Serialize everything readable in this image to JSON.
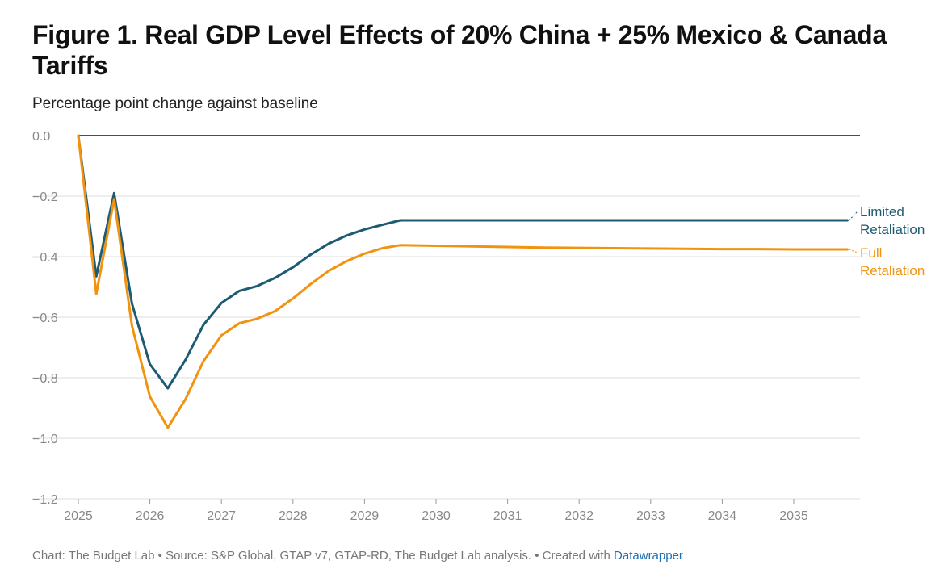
{
  "title": "Figure 1. Real GDP Level Effects of 20% China + 25% Mexico & Canada Tariffs",
  "subtitle": "Percentage point change against baseline",
  "footer": {
    "text": "Chart: The Budget Lab • Source: S&P Global, GTAP v7, GTAP-RD, The Budget Lab analysis. • Created with ",
    "link": "Datawrapper"
  },
  "colors": {
    "limited": "#1d5b73",
    "full": "#f2930f",
    "grid": "#dedede",
    "zero_line": "#111111",
    "tick_label": "#888888"
  },
  "chart_data": {
    "type": "line",
    "title": "Figure 1. Real GDP Level Effects of 20% China + 25% Mexico & Canada Tariffs",
    "subtitle": "Percentage point change against baseline",
    "xlabel": "",
    "ylabel": "",
    "xlim": [
      2025,
      2035.75
    ],
    "ylim": [
      -1.2,
      0.0
    ],
    "x_ticks": [
      2025,
      2026,
      2027,
      2028,
      2029,
      2030,
      2031,
      2032,
      2033,
      2034,
      2035
    ],
    "y_ticks": [
      0.0,
      -0.2,
      -0.4,
      -0.6,
      -0.8,
      -1.0,
      -1.2
    ],
    "y_tick_labels": [
      "0.0",
      "−0.2",
      "−0.4",
      "−0.6",
      "−0.8",
      "−1.0",
      "−1.2"
    ],
    "grid": true,
    "legend": "direct labels at right end of lines",
    "x": [
      2025,
      2025.25,
      2025.5,
      2025.75,
      2026,
      2026.25,
      2026.5,
      2026.75,
      2027,
      2027.25,
      2027.5,
      2027.75,
      2028,
      2028.25,
      2028.5,
      2028.75,
      2029,
      2029.25,
      2029.5,
      2029.75,
      2030,
      2030.5,
      2031,
      2031.5,
      2032,
      2032.5,
      2033,
      2033.5,
      2034,
      2034.5,
      2035,
      2035.5,
      2035.75
    ],
    "series": [
      {
        "name": "Limited Retaliation",
        "label_lines": [
          "Limited",
          "Retaliation"
        ],
        "color": "#1d5b73",
        "values": [
          0.0,
          -0.465,
          -0.19,
          -0.555,
          -0.755,
          -0.835,
          -0.74,
          -0.625,
          -0.553,
          -0.513,
          -0.497,
          -0.47,
          -0.435,
          -0.393,
          -0.357,
          -0.33,
          -0.31,
          -0.295,
          -0.28,
          -0.28,
          -0.28,
          -0.28,
          -0.28,
          -0.28,
          -0.28,
          -0.28,
          -0.28,
          -0.28,
          -0.28,
          -0.28,
          -0.28,
          -0.28,
          -0.28
        ]
      },
      {
        "name": "Full Retaliation",
        "label_lines": [
          "Full",
          "Retaliation"
        ],
        "color": "#f2930f",
        "values": [
          0.0,
          -0.523,
          -0.21,
          -0.628,
          -0.862,
          -0.965,
          -0.87,
          -0.745,
          -0.66,
          -0.62,
          -0.605,
          -0.58,
          -0.538,
          -0.49,
          -0.447,
          -0.415,
          -0.39,
          -0.372,
          -0.362,
          -0.363,
          -0.364,
          -0.366,
          -0.368,
          -0.37,
          -0.371,
          -0.372,
          -0.373,
          -0.374,
          -0.375,
          -0.375,
          -0.376,
          -0.376,
          -0.376
        ]
      }
    ]
  }
}
